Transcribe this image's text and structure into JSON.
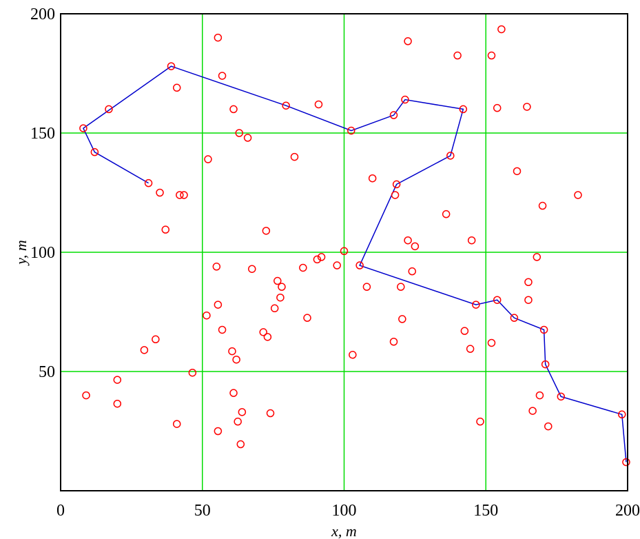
{
  "chart_data": {
    "type": "scatter",
    "xlabel": "x,  m",
    "ylabel": "y,  m",
    "xlim": [
      0,
      200
    ],
    "ylim": [
      0,
      200
    ],
    "xticks": [
      0,
      50,
      100,
      150,
      200
    ],
    "yticks": [
      50,
      100,
      150,
      200
    ],
    "grid": true,
    "colors": {
      "grid": "#00dd00",
      "points": "#ff0000",
      "path": "#0000cc",
      "axes": "#000000"
    },
    "series": [
      {
        "kind": "points",
        "marker": "circle-open",
        "points": [
          [
            55.5,
            190
          ],
          [
            57,
            174
          ],
          [
            41,
            169
          ],
          [
            61,
            160
          ],
          [
            63,
            150
          ],
          [
            66,
            148
          ],
          [
            52,
            139
          ],
          [
            82.5,
            140
          ],
          [
            91,
            162
          ],
          [
            17,
            160
          ],
          [
            35,
            125
          ],
          [
            42,
            124
          ],
          [
            43.5,
            124
          ],
          [
            37,
            109.5
          ],
          [
            72.5,
            109
          ],
          [
            55,
            94
          ],
          [
            67.5,
            93
          ],
          [
            85.5,
            93.5
          ],
          [
            90.5,
            97
          ],
          [
            92,
            98
          ],
          [
            97.5,
            94.5
          ],
          [
            100,
            100.5
          ],
          [
            76.5,
            88
          ],
          [
            78,
            85.5
          ],
          [
            77.5,
            81
          ],
          [
            75.5,
            76.5
          ],
          [
            55.5,
            78
          ],
          [
            51.5,
            73.5
          ],
          [
            57,
            67.5
          ],
          [
            71.5,
            66.5
          ],
          [
            73,
            64.5
          ],
          [
            87,
            72.5
          ],
          [
            60.5,
            58.5
          ],
          [
            62,
            55
          ],
          [
            33.5,
            63.5
          ],
          [
            29.5,
            59
          ],
          [
            46.5,
            49.5
          ],
          [
            20,
            46.5
          ],
          [
            20,
            36.5
          ],
          [
            9,
            40
          ],
          [
            61,
            41
          ],
          [
            64,
            33
          ],
          [
            74,
            32.5
          ],
          [
            62.5,
            29
          ],
          [
            41,
            28
          ],
          [
            55.5,
            25
          ],
          [
            63.5,
            19.5
          ],
          [
            103,
            57
          ],
          [
            108,
            85.5
          ],
          [
            110,
            131
          ],
          [
            117.5,
            62.5
          ],
          [
            120.5,
            72
          ],
          [
            120,
            85.5
          ],
          [
            124,
            92
          ],
          [
            122.5,
            105
          ],
          [
            125,
            102.5
          ],
          [
            122.5,
            188.5
          ],
          [
            140,
            182.5
          ],
          [
            152,
            182.5
          ],
          [
            155.5,
            193.5
          ],
          [
            154,
            160.5
          ],
          [
            164.5,
            161
          ],
          [
            161,
            134
          ],
          [
            170,
            119.5
          ],
          [
            182.5,
            124
          ],
          [
            136,
            116
          ],
          [
            145,
            105
          ],
          [
            168,
            98
          ],
          [
            165,
            87.5
          ],
          [
            165,
            80
          ],
          [
            142.5,
            67
          ],
          [
            144.5,
            59.5
          ],
          [
            152,
            62
          ],
          [
            148,
            29
          ],
          [
            169,
            40
          ],
          [
            166.5,
            33.5
          ],
          [
            172,
            27
          ],
          [
            8,
            152
          ],
          [
            12,
            142
          ],
          [
            31,
            129
          ],
          [
            39,
            178
          ],
          [
            79.5,
            161.5
          ],
          [
            102.5,
            151
          ],
          [
            117.5,
            157.5
          ],
          [
            121.5,
            164
          ],
          [
            142,
            160
          ],
          [
            137.5,
            140.5
          ],
          [
            118.5,
            128.5
          ],
          [
            118,
            124
          ],
          [
            105.5,
            94.5
          ],
          [
            146.5,
            78
          ],
          [
            154,
            80
          ],
          [
            160,
            72.5
          ],
          [
            170.5,
            67.5
          ],
          [
            171,
            53
          ],
          [
            176.5,
            39.5
          ],
          [
            198,
            32
          ],
          [
            199.5,
            12
          ]
        ]
      },
      {
        "kind": "path",
        "points": [
          [
            31,
            129
          ],
          [
            12,
            142
          ],
          [
            8,
            152
          ],
          [
            39,
            178
          ],
          [
            79.5,
            161.5
          ],
          [
            102.5,
            151
          ],
          [
            117.5,
            157.5
          ],
          [
            121.5,
            164
          ],
          [
            142,
            160
          ],
          [
            137.5,
            140.5
          ],
          [
            118.5,
            128.5
          ],
          [
            105.5,
            94.5
          ],
          [
            146.5,
            78
          ],
          [
            154,
            80
          ],
          [
            160,
            72.5
          ],
          [
            170.5,
            67.5
          ],
          [
            171,
            53
          ],
          [
            176.5,
            39.5
          ],
          [
            198,
            32
          ],
          [
            199.5,
            12
          ]
        ]
      }
    ]
  }
}
